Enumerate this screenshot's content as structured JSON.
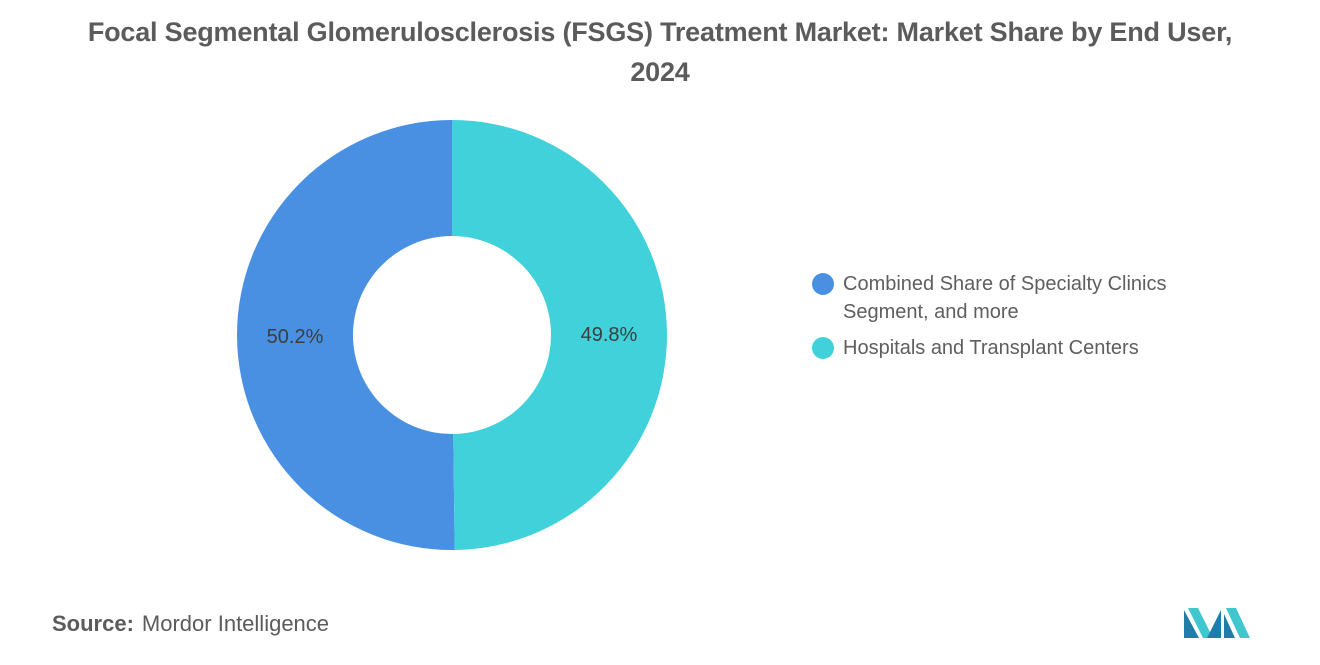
{
  "chart_data": {
    "type": "pie",
    "title": "Focal Segmental Glomerulosclerosis (FSGS) Treatment Market: Market Share by End User, 2024",
    "donut": true,
    "legend_position": "right",
    "slices": [
      {
        "label": "Combined Share of Specialty Clinics Segment, and more",
        "value": 50.2,
        "data_label": "50.2%",
        "color": "#4a90e2"
      },
      {
        "label": "Hospitals and Transplant Centers",
        "value": 49.8,
        "data_label": "49.8%",
        "color": "#40d1da"
      }
    ]
  },
  "footer": {
    "source_key": "Source:",
    "source_value": "Mordor Intelligence"
  },
  "logo": {
    "icon": "mordor-intelligence-logo-icon",
    "colors": [
      "#1f7ea8",
      "#3fc6cf"
    ]
  }
}
